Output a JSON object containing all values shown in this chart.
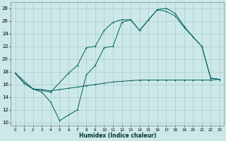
{
  "xlabel": "Humidex (Indice chaleur)",
  "bg_color": "#cce8e8",
  "grid_color": "#aacccc",
  "line_color": "#006060",
  "xlim": [
    -0.5,
    23.5
  ],
  "ylim": [
    9.5,
    29
  ],
  "yticks": [
    10,
    12,
    14,
    16,
    18,
    20,
    22,
    24,
    26,
    28
  ],
  "xticks": [
    0,
    1,
    2,
    3,
    4,
    5,
    6,
    7,
    8,
    9,
    10,
    11,
    12,
    13,
    14,
    15,
    16,
    17,
    18,
    19,
    20,
    21,
    22,
    23
  ],
  "line1_x": [
    0,
    1,
    2,
    3,
    4,
    5,
    6,
    7,
    8,
    9,
    10,
    11,
    12,
    13,
    14,
    15,
    16,
    17,
    18,
    19,
    20,
    21,
    22,
    23
  ],
  "line1_y": [
    17.8,
    16.2,
    15.3,
    15.2,
    15.0,
    15.2,
    15.4,
    15.6,
    15.8,
    16.0,
    16.2,
    16.4,
    16.5,
    16.6,
    16.7,
    16.7,
    16.7,
    16.7,
    16.7,
    16.7,
    16.7,
    16.7,
    16.7,
    16.8
  ],
  "line2_x": [
    0,
    2,
    4,
    6,
    7,
    8,
    9,
    10,
    11,
    12,
    13,
    14,
    15,
    16,
    17,
    18,
    19,
    20,
    21,
    22,
    23
  ],
  "line2_y": [
    17.8,
    15.3,
    14.8,
    17.8,
    19.0,
    21.8,
    22.0,
    24.5,
    25.8,
    26.2,
    26.2,
    24.5,
    26.2,
    27.8,
    28.0,
    27.2,
    25.2,
    23.5,
    22.0,
    17.0,
    16.8
  ],
  "line3_x": [
    0,
    1,
    2,
    3,
    4,
    5,
    6,
    7,
    8,
    9,
    10,
    11,
    12,
    13,
    14,
    15,
    16,
    17,
    18,
    19,
    20,
    21,
    22,
    23
  ],
  "line3_y": [
    17.8,
    16.2,
    15.3,
    14.8,
    13.2,
    10.3,
    11.2,
    12.0,
    17.5,
    19.0,
    21.8,
    22.0,
    25.8,
    26.2,
    24.5,
    26.2,
    27.8,
    27.5,
    26.8,
    25.0,
    23.5,
    22.0,
    17.0,
    16.8
  ]
}
